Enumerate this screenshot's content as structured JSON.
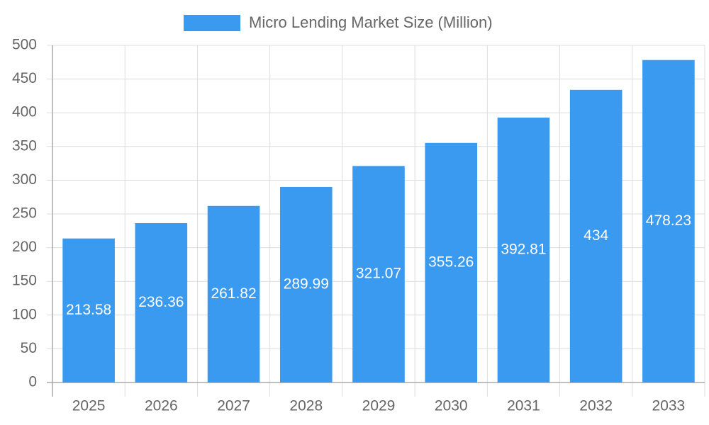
{
  "chart_data": {
    "type": "bar",
    "categories": [
      "2025",
      "2026",
      "2027",
      "2028",
      "2029",
      "2030",
      "2031",
      "2032",
      "2033"
    ],
    "series": [
      {
        "name": "Micro Lending Market Size (Million)",
        "color": "#3a9af0",
        "values": [
          213.58,
          236.36,
          261.82,
          289.99,
          321.07,
          355.26,
          392.81,
          434,
          478.23
        ]
      }
    ],
    "ylim": [
      0,
      500
    ],
    "yticks": [
      0,
      50,
      100,
      150,
      200,
      250,
      300,
      350,
      400,
      450,
      500
    ],
    "grid": true,
    "legend": "top"
  }
}
